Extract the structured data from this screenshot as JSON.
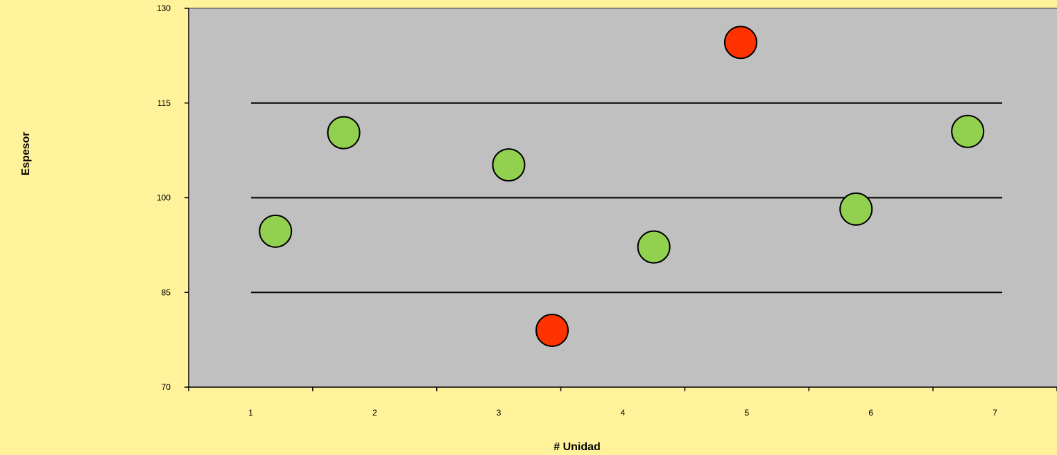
{
  "chart_data": {
    "type": "scatter",
    "title": "",
    "xlabel": "# Unidad",
    "ylabel": "Espesor",
    "ylim": [
      70,
      130
    ],
    "yticks": [
      70,
      85,
      100,
      115,
      130
    ],
    "xticks": [
      1,
      2,
      3,
      4,
      5,
      6,
      7
    ],
    "xlim": [
      0.5,
      7.5
    ],
    "grid": true,
    "legend": "none",
    "reference_lines": [
      85,
      100,
      115
    ],
    "points": [
      {
        "x": 1.2,
        "y": 94.7,
        "status": "ok"
      },
      {
        "x": 1.75,
        "y": 110.3,
        "status": "ok"
      },
      {
        "x": 3.08,
        "y": 105.2,
        "status": "ok"
      },
      {
        "x": 3.43,
        "y": 79.0,
        "status": "out"
      },
      {
        "x": 4.25,
        "y": 92.2,
        "status": "ok"
      },
      {
        "x": 4.95,
        "y": 124.6,
        "status": "out"
      },
      {
        "x": 5.88,
        "y": 98.2,
        "status": "ok"
      },
      {
        "x": 6.78,
        "y": 110.5,
        "status": "ok"
      }
    ],
    "colors": {
      "ok": "#92D050",
      "out": "#FF3300",
      "plot_background": "#C0C0C0",
      "page_background": "#FFF29B"
    }
  }
}
